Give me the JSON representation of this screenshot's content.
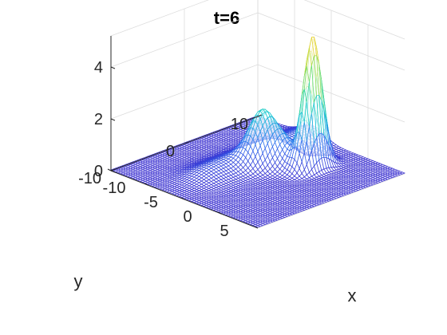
{
  "chart_data": {
    "type": "surface",
    "title": "t=6",
    "xlabel": "x",
    "ylabel": "y",
    "zlabel": "",
    "xlim": [
      -10,
      10
    ],
    "ylim": [
      -10,
      10
    ],
    "zlim": [
      0,
      5.2
    ],
    "xticks": [
      {
        "value": -10,
        "label": "-10"
      },
      {
        "value": -5,
        "label": "-5"
      },
      {
        "value": 0,
        "label": "0"
      },
      {
        "value": 5,
        "label": "5"
      }
    ],
    "yticks": [
      {
        "value": -10,
        "label": "-10"
      },
      {
        "value": 0,
        "label": "0"
      },
      {
        "value": 10,
        "label": "10"
      }
    ],
    "zticks": [
      {
        "value": 0,
        "label": "0"
      },
      {
        "value": 2,
        "label": "2"
      },
      {
        "value": 4,
        "label": "4"
      }
    ],
    "grid": true,
    "colormap": "turbo",
    "colors": {
      "low": "#3b2fcf",
      "mid": "#1cc9d6",
      "high": "#f7d13a"
    },
    "peaks": [
      {
        "x": 3.0,
        "y": 4.5,
        "height": 5.0
      },
      {
        "x": -1.0,
        "y": 1.5,
        "height": 1.7
      }
    ]
  }
}
